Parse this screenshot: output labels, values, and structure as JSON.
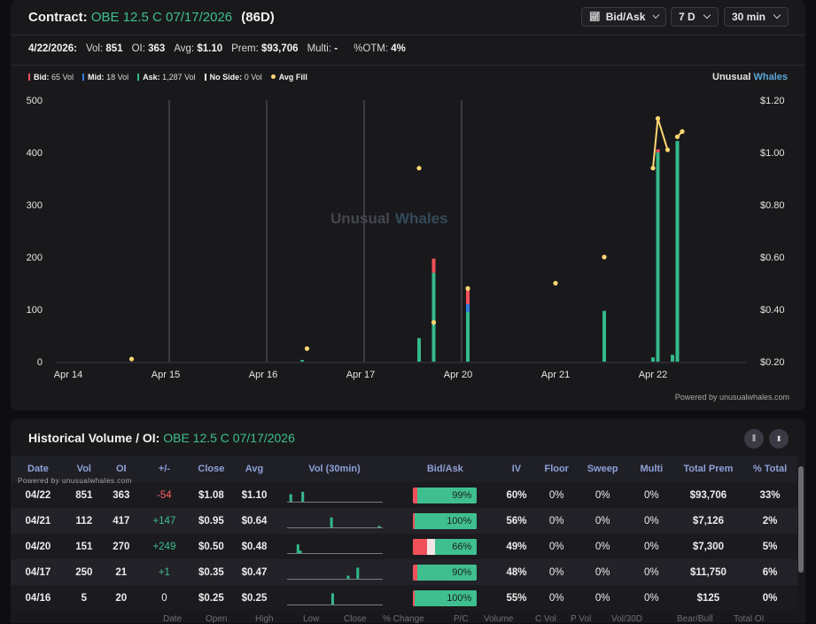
{
  "header": {
    "label": "Contract:",
    "contract": "OBE 12.5 C 07/17/2026",
    "dte": "(86D)",
    "dropdowns": [
      "Bid/Ask",
      "7 D",
      "30 min"
    ]
  },
  "stats": [
    {
      "label": "4/22/2026:",
      "value": ""
    },
    {
      "label": "Vol:",
      "value": "851"
    },
    {
      "label": "OI:",
      "value": "363"
    },
    {
      "label": "Avg:",
      "value": "$1.10"
    },
    {
      "label": "Prem:",
      "value": "$93,706"
    },
    {
      "label": "Multi:",
      "value": "-"
    },
    {
      "label": "%OTM:",
      "value": "4%"
    }
  ],
  "legend": [
    {
      "label": "Bid:",
      "value": "65 Vol",
      "color": "#f0505a",
      "kind": "bar"
    },
    {
      "label": "Mid:",
      "value": "18 Vol",
      "color": "#2f7fe0",
      "kind": "bar"
    },
    {
      "label": "Ask:",
      "value": "1,287 Vol",
      "color": "#35b98a",
      "kind": "bar"
    },
    {
      "label": "No Side:",
      "value": "0 Vol",
      "color": "#e8e8e8",
      "kind": "bar"
    },
    {
      "label": "Avg Fill",
      "value": "",
      "color": "#ffd873",
      "kind": "dot"
    }
  ],
  "brand": {
    "a": "Unusual",
    "b": "Whales"
  },
  "watermark": {
    "a": "Unusual",
    "b": "Whales"
  },
  "powered": "Powered by unusualwhales.com",
  "chart_data": {
    "type": "bar",
    "x_ticks": [
      "Apr 14",
      "Apr 15",
      "Apr 16",
      "Apr 17",
      "Apr 20",
      "Apr 21",
      "Apr 22"
    ],
    "y_left": {
      "ticks": [
        0,
        100,
        200,
        300,
        400,
        500
      ],
      "ylim": [
        0,
        500
      ]
    },
    "y_right": {
      "ticks": [
        "$0.20",
        "$0.40",
        "$0.60",
        "$0.80",
        "$1.00",
        "$1.20"
      ],
      "ylim": [
        0.2,
        1.2
      ]
    },
    "volume_bars": [
      {
        "day": 2.4,
        "ask": 3,
        "bid": 0,
        "mid": 0
      },
      {
        "day": 3.6,
        "ask": 45,
        "bid": 0,
        "mid": 0
      },
      {
        "day": 3.75,
        "ask": 170,
        "bid": 27,
        "mid": 0
      },
      {
        "day": 4.1,
        "ask": 95,
        "bid": 30,
        "mid": 15
      },
      {
        "day": 5.5,
        "ask": 97,
        "bid": 0,
        "mid": 0
      },
      {
        "day": 6.0,
        "ask": 8,
        "bid": 0,
        "mid": 0
      },
      {
        "day": 6.05,
        "ask": 400,
        "bid": 6,
        "mid": 0
      },
      {
        "day": 6.2,
        "ask": 13,
        "bid": 0,
        "mid": 0
      },
      {
        "day": 6.25,
        "ask": 422,
        "bid": 0,
        "mid": 0
      }
    ],
    "avg_fill": [
      {
        "day": 0.65,
        "price": 0.21
      },
      {
        "day": 2.45,
        "price": 0.25
      },
      {
        "day": 3.6,
        "price": 0.94
      },
      {
        "day": 3.75,
        "price": 0.35
      },
      {
        "day": 4.1,
        "price": 0.48
      },
      {
        "day": 5.0,
        "price": 0.5
      },
      {
        "day": 5.5,
        "price": 0.6
      },
      {
        "day": 6.0,
        "price": 0.94
      },
      {
        "day": 6.05,
        "price": 1.13
      },
      {
        "day": 6.15,
        "price": 1.01
      },
      {
        "day": 6.25,
        "price": 1.06
      },
      {
        "day": 6.3,
        "price": 1.08
      }
    ],
    "fill_lines": [
      [
        8,
        9
      ],
      [
        10,
        11
      ]
    ],
    "colors": {
      "bid": "#f0505a",
      "mid": "#2f7fe0",
      "ask": "#35b98a",
      "fill": "#ffd873"
    }
  },
  "history": {
    "title": "Historical Volume / OI:",
    "contract": "OBE 12.5 C 07/17/2026",
    "powered": "Powered by unusualwhales.com",
    "columns": [
      "Date",
      "Vol",
      "OI",
      "+/-",
      "Close",
      "Avg",
      "Vol (30min)",
      "Bid/Ask",
      "IV",
      "Floor",
      "Sweep",
      "Multi",
      "Total Prem",
      "% Total"
    ],
    "rows": [
      {
        "date": "04/22",
        "vol": "851",
        "oi": "363",
        "chg": "-54",
        "sign": "neg",
        "close": "$1.08",
        "avg": "$1.10",
        "spark": [
          [
            0.1,
            0.6
          ],
          [
            0.6,
            0.8
          ]
        ],
        "bid_pct": 0.07,
        "mid_pct": 0.0,
        "ask_pct": 0.93,
        "ba": "99%",
        "iv": "60%",
        "floor": "0%",
        "sweep": "0%",
        "multi": "0%",
        "prem": "$93,706",
        "total": "33%"
      },
      {
        "date": "04/21",
        "vol": "112",
        "oi": "417",
        "chg": "+147",
        "sign": "pos",
        "close": "$0.95",
        "avg": "$0.64",
        "spark": [
          [
            1.8,
            0.8
          ],
          [
            3.8,
            0.12
          ]
        ],
        "bid_pct": 0.03,
        "mid_pct": 0.0,
        "ask_pct": 0.97,
        "ba": "100%",
        "iv": "56%",
        "floor": "0%",
        "sweep": "0%",
        "multi": "0%",
        "prem": "$7,126",
        "total": "2%"
      },
      {
        "date": "04/20",
        "vol": "151",
        "oi": "270",
        "chg": "+249",
        "sign": "pos",
        "close": "$0.50",
        "avg": "$0.48",
        "spark": [
          [
            0.4,
            0.7
          ],
          [
            0.5,
            0.2
          ]
        ],
        "bid_pct": 0.22,
        "mid_pct": 0.12,
        "ask_pct": 0.66,
        "ba": "66%",
        "iv": "49%",
        "floor": "0%",
        "sweep": "0%",
        "multi": "0%",
        "prem": "$7,300",
        "total": "5%"
      },
      {
        "date": "04/17",
        "vol": "250",
        "oi": "21",
        "chg": "+1",
        "sign": "pos",
        "close": "$0.35",
        "avg": "$0.47",
        "spark": [
          [
            2.5,
            0.25
          ],
          [
            2.9,
            0.9
          ]
        ],
        "bid_pct": 0.07,
        "mid_pct": 0.0,
        "ask_pct": 0.93,
        "ba": "90%",
        "iv": "48%",
        "floor": "0%",
        "sweep": "0%",
        "multi": "0%",
        "prem": "$11,750",
        "total": "6%"
      },
      {
        "date": "04/16",
        "vol": "5",
        "oi": "20",
        "chg": "0",
        "sign": "zero",
        "close": "$0.25",
        "avg": "$0.25",
        "spark": [
          [
            1.85,
            0.9
          ]
        ],
        "bid_pct": 0.03,
        "mid_pct": 0.0,
        "ask_pct": 0.97,
        "ba": "100%",
        "iv": "55%",
        "floor": "0%",
        "sweep": "0%",
        "multi": "0%",
        "prem": "$125",
        "total": "0%"
      }
    ]
  },
  "peek_columns": [
    "Date",
    "Open",
    "High",
    "Low",
    "Close",
    "% Change",
    "P/C",
    "Volume",
    "C Vol",
    "P Vol",
    "Vol/30D",
    "Bear/Bull",
    "Total OI"
  ]
}
